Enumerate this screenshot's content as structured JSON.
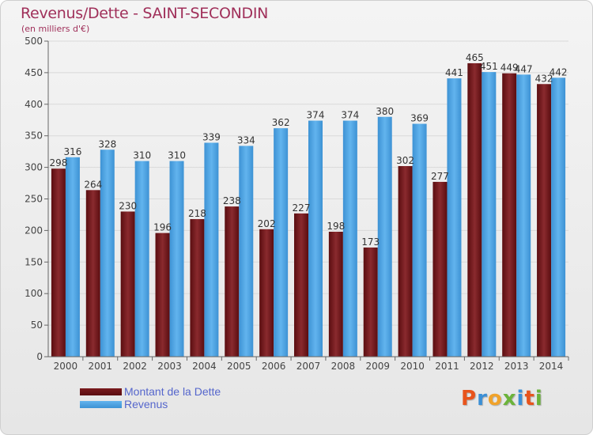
{
  "header": {
    "title": "Revenus/Dette - SAINT-SECONDIN",
    "subtitle": "(en milliers d'€)"
  },
  "legend": {
    "items": [
      {
        "label": "Montant de la Dette",
        "color": "#7a1a1e"
      },
      {
        "label": "Revenus",
        "color": "#4ba3e3"
      }
    ]
  },
  "logo": {
    "letters": [
      "P",
      "r",
      "o",
      "x",
      "i",
      "t",
      "i"
    ],
    "colors": [
      "#e8541c",
      "#3b8fd6",
      "#f0a22a",
      "#6bb33a",
      "#3b8fd6",
      "#e8541c",
      "#6bb33a"
    ]
  },
  "chart_data": {
    "type": "bar",
    "categories": [
      "2000",
      "2001",
      "2002",
      "2003",
      "2004",
      "2005",
      "2006",
      "2007",
      "2008",
      "2009",
      "2010",
      "2011",
      "2012",
      "2013",
      "2014"
    ],
    "series": [
      {
        "name": "Montant de la Dette",
        "values": [
          298,
          264,
          230,
          196,
          218,
          238,
          202,
          227,
          198,
          173,
          302,
          277,
          465,
          449,
          432
        ],
        "color": "#7a1a1e"
      },
      {
        "name": "Revenus",
        "values": [
          316,
          328,
          310,
          310,
          339,
          334,
          362,
          374,
          374,
          380,
          369,
          441,
          451,
          447,
          442
        ],
        "color": "#4ba3e3"
      }
    ],
    "ylim": [
      0,
      500
    ],
    "yticks": [
      0,
      50,
      100,
      150,
      200,
      250,
      300,
      350,
      400,
      450,
      500
    ],
    "grid": true,
    "legend_position": "bottom-left"
  }
}
